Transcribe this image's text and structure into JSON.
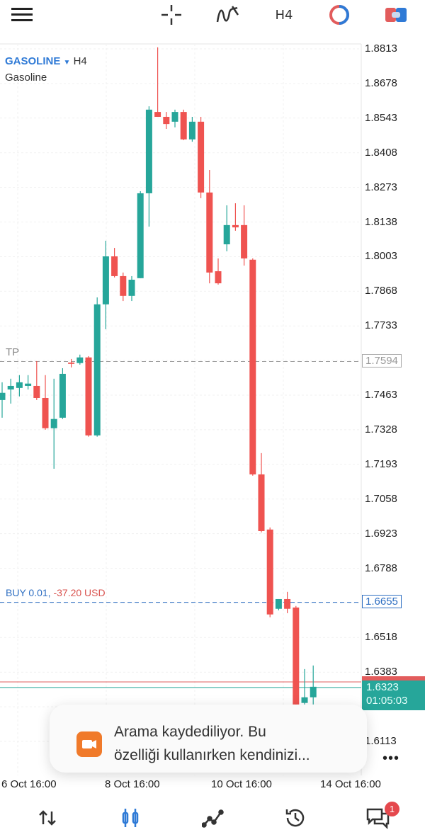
{
  "topbar": {
    "icons": [
      "menu-icon",
      "crosshair-icon",
      "indicators-icon",
      "timeframe",
      "one-click-trading-icon",
      "trade-icon"
    ],
    "timeframe": "H4"
  },
  "chart_header": {
    "symbol": "GASOLINE",
    "timeframe": "H4",
    "description": "Gasoline"
  },
  "chart_data": {
    "type": "candlestick",
    "colors": {
      "up": "#26a69a",
      "down": "#ef5350"
    },
    "ylim": [
      1.6113,
      1.8813
    ],
    "y_ticks": [
      "1.8813",
      "1.8678",
      "1.8543",
      "1.8408",
      "1.8273",
      "1.8138",
      "1.8003",
      "1.7868",
      "1.7733",
      "1.7463",
      "1.7328",
      "1.7193",
      "1.7058",
      "1.6923",
      "1.6788",
      "1.6518",
      "1.6383",
      "1.6113"
    ],
    "x_ticks": [
      "6 Oct 16:00",
      "8 Oct 16:00",
      "10 Oct 16:00",
      "14 Oct 16:00"
    ],
    "grid": true,
    "candles": [
      [
        1.7444,
        1.7513,
        1.7375,
        1.7472
      ],
      [
        1.7485,
        1.7527,
        1.743,
        1.7499
      ],
      [
        1.7491,
        1.7541,
        1.7458,
        1.7513
      ],
      [
        1.7499,
        1.7541,
        1.7485,
        1.7508
      ],
      [
        1.7499,
        1.7596,
        1.7444,
        1.7452
      ],
      [
        1.7452,
        1.7541,
        1.7328,
        1.7334
      ],
      [
        1.7334,
        1.7527,
        1.7176,
        1.737
      ],
      [
        1.7375,
        1.7568,
        1.737,
        1.7546
      ],
      [
        1.759,
        1.7604,
        1.7571,
        1.7585
      ],
      [
        1.7588,
        1.7621,
        1.7582,
        1.761
      ],
      [
        1.761,
        1.7615,
        1.7301,
        1.7306
      ],
      [
        1.7306,
        1.7844,
        1.7301,
        1.7817
      ],
      [
        1.7817,
        1.8065,
        1.772,
        1.8004
      ],
      [
        1.8004,
        1.8037,
        1.7922,
        1.7927
      ],
      [
        1.7927,
        1.7941,
        1.783,
        1.785
      ],
      [
        1.785,
        1.7927,
        1.783,
        1.7913
      ],
      [
        1.7919,
        1.8258,
        1.7919,
        1.825
      ],
      [
        1.825,
        1.8589,
        1.812,
        1.8576
      ],
      [
        1.8567,
        1.8819,
        1.8548,
        1.8548
      ],
      [
        1.8548,
        1.8567,
        1.8501,
        1.852
      ],
      [
        1.8529,
        1.8576,
        1.8507,
        1.8567
      ],
      [
        1.8567,
        1.8576,
        1.8457,
        1.846
      ],
      [
        1.846,
        1.8548,
        1.8451,
        1.8529
      ],
      [
        1.8529,
        1.8548,
        1.8231,
        1.8253
      ],
      [
        1.8253,
        1.8341,
        1.7899,
        1.7941
      ],
      [
        1.7946,
        1.7996,
        1.7894,
        1.7899
      ],
      [
        1.8051,
        1.8203,
        1.8024,
        1.8126
      ],
      [
        1.8126,
        1.8211,
        1.8104,
        1.8117
      ],
      [
        1.8126,
        1.8203,
        1.7968,
        1.7996
      ],
      [
        1.7991,
        1.7996,
        1.7149,
        1.7154
      ],
      [
        1.7154,
        1.7237,
        1.6928,
        1.6933
      ],
      [
        1.6939,
        1.6947,
        1.6597,
        1.6608
      ],
      [
        1.663,
        1.6668,
        1.6624,
        1.6668
      ],
      [
        1.6668,
        1.6696,
        1.6613,
        1.663
      ],
      [
        1.6635,
        1.6641,
        1.6257,
        1.6257
      ],
      [
        1.6263,
        1.6395,
        1.6257,
        1.6285
      ],
      [
        1.6285,
        1.6409,
        1.6257,
        1.6326
      ]
    ],
    "candle_format": [
      "open",
      "high",
      "low",
      "close"
    ],
    "lines": {
      "tp": {
        "label": "TP",
        "price": "1.7594",
        "color": "#9e9e9e"
      },
      "buy": {
        "label": "BUY 0.01,",
        "pl": "-37.20 USD",
        "price": "1.6655",
        "color": "#2f6fc2"
      },
      "ask": {
        "price": 1.6345,
        "color": "#e25c5c"
      },
      "bid": {
        "price": "1.6323",
        "countdown": "01:05:03",
        "color": "#26a69a"
      }
    }
  },
  "toast": {
    "icon": "screen-record-icon",
    "line1": "Arama kaydediliyor. Bu",
    "line2": "özelliği kullanırken kendinizi..."
  },
  "more": "•••",
  "bottom_nav": {
    "items": [
      "quotes",
      "chart",
      "trade",
      "history",
      "messages"
    ],
    "active": "chart",
    "accent": "#2f7ad6",
    "messages_badge": "1"
  }
}
